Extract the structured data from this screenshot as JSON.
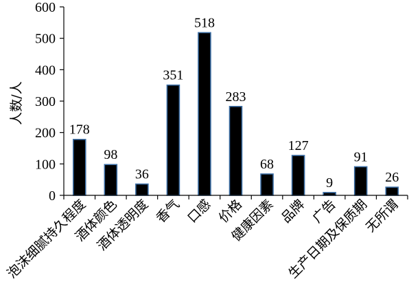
{
  "chart_data": {
    "type": "bar",
    "title": "",
    "xlabel": "",
    "ylabel": "人数/人",
    "ylim": [
      0,
      600
    ],
    "yticks": [
      0,
      100,
      200,
      300,
      400,
      500,
      600
    ],
    "grid": false,
    "legend": "none",
    "bar_color": "#000000",
    "bar_edge_color": "#3d6fa6",
    "categories": [
      "泡沫细腻持久程度",
      "酒体颜色",
      "酒体透明度",
      "香气",
      "口感",
      "价格",
      "健康因素",
      "品牌",
      "广告",
      "生产日期及保质期",
      "无所谓"
    ],
    "values": [
      178,
      98,
      36,
      351,
      518,
      283,
      68,
      127,
      9,
      91,
      26
    ],
    "data_labels": [
      "178",
      "98",
      "36",
      "351",
      "518",
      "283",
      "68",
      "127",
      "9",
      "91",
      "26"
    ]
  }
}
